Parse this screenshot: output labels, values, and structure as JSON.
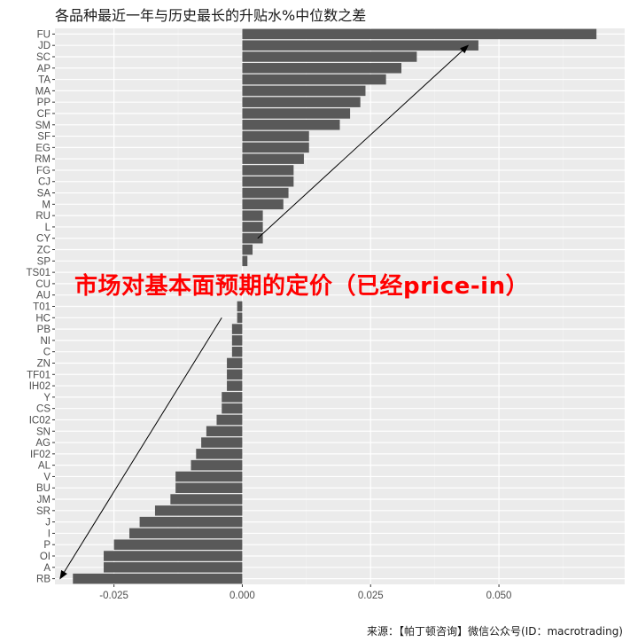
{
  "chart_data": {
    "type": "bar",
    "orientation": "horizontal",
    "title": "各品种最近一年与历史最长的升贴水%中位数之差",
    "xlabel": "",
    "ylabel": "",
    "xlim": [
      -0.0365,
      0.0745
    ],
    "x_ticks": [
      -0.025,
      0.0,
      0.025,
      0.05
    ],
    "x_tick_labels": [
      "-0.025",
      "0.000",
      "0.025",
      "0.050"
    ],
    "grid": true,
    "categories": [
      "FU",
      "JD",
      "SC",
      "AP",
      "TA",
      "MA",
      "PP",
      "CF",
      "SM",
      "SF",
      "EG",
      "RM",
      "FG",
      "CJ",
      "SA",
      "M",
      "RU",
      "L",
      "CY",
      "ZC",
      "SP",
      "TS01",
      "CU",
      "AU",
      "T01",
      "HC",
      "PB",
      "NI",
      "C",
      "ZN",
      "TF01",
      "IH02",
      "Y",
      "CS",
      "IC02",
      "SN",
      "AG",
      "IF02",
      "AL",
      "V",
      "BU",
      "JM",
      "SR",
      "J",
      "I",
      "P",
      "OI",
      "A",
      "RB"
    ],
    "values": [
      0.069,
      0.046,
      0.034,
      0.031,
      0.028,
      0.024,
      0.023,
      0.021,
      0.019,
      0.013,
      0.013,
      0.012,
      0.01,
      0.01,
      0.009,
      0.008,
      0.004,
      0.004,
      0.004,
      0.002,
      0.001,
      0.0,
      0.0,
      0.0,
      -0.001,
      -0.001,
      -0.002,
      -0.002,
      -0.002,
      -0.003,
      -0.003,
      -0.003,
      -0.004,
      -0.004,
      -0.005,
      -0.007,
      -0.008,
      -0.009,
      -0.01,
      -0.013,
      -0.013,
      -0.014,
      -0.017,
      -0.02,
      -0.022,
      -0.025,
      -0.027,
      -0.027,
      -0.033
    ],
    "bar_color": "#595959",
    "panel_background": "#ebebeb",
    "annotation": "市场对基本面预期的定价（已经price-in）",
    "annotation_color": "#ff0000",
    "arrows": [
      {
        "from": {
          "x": 0.003,
          "category": "CY"
        },
        "to": {
          "x": 0.044,
          "category": "JD"
        }
      },
      {
        "from": {
          "x": -0.004,
          "category": "HC"
        },
        "to": {
          "x": -0.0355,
          "category": "RB"
        }
      }
    ]
  },
  "source": "来源：【帕丁顿咨询】微信公众号(ID：macrotrading)"
}
